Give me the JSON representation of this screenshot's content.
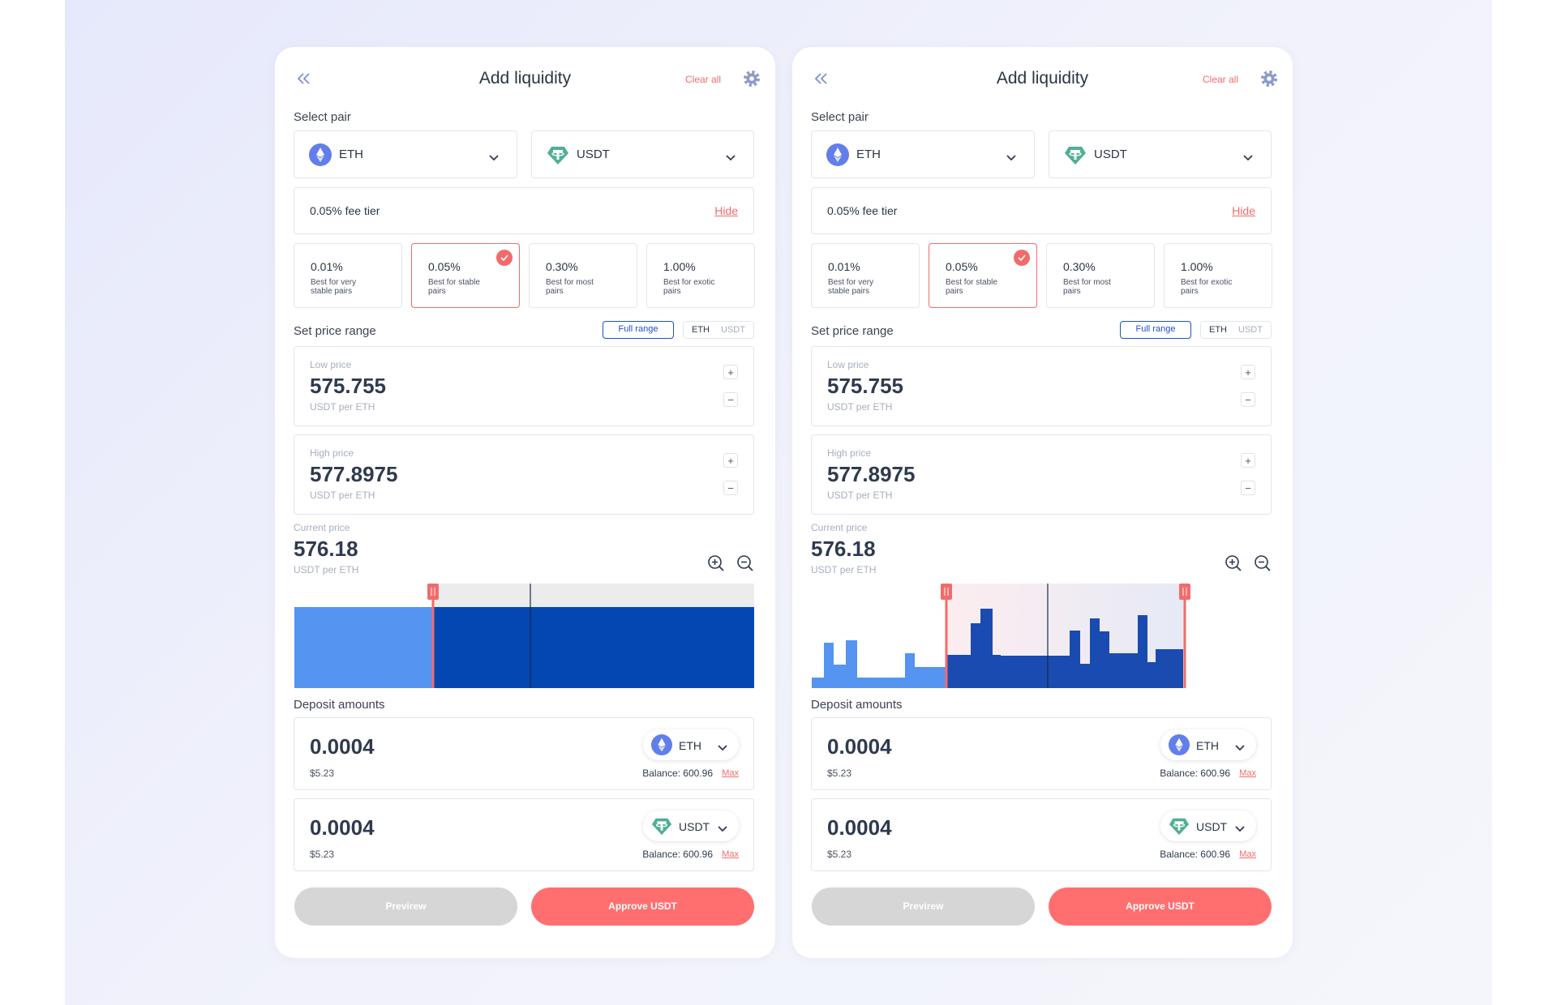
{
  "panels": [
    {
      "header": {
        "title": "Add liquidity",
        "clear": "Clear all"
      },
      "select_pair": {
        "label": "Select pair",
        "tokens": [
          "ETH",
          "USDT"
        ]
      },
      "fee": {
        "label": "0.05% fee tier",
        "toggle": "Hide",
        "selected": 1,
        "options": [
          {
            "rate": "0.01%",
            "desc": "Best for very stable pairs"
          },
          {
            "rate": "0.05%",
            "desc": "Best for stable pairs"
          },
          {
            "rate": "0.30%",
            "desc": "Best for most pairs"
          },
          {
            "rate": "1.00%",
            "desc": "Best for exotic pairs"
          }
        ]
      },
      "range": {
        "label": "Set price range",
        "full": "Full range",
        "units": [
          "ETH",
          "USDT"
        ],
        "low": {
          "label": "Low price",
          "value": "575.755",
          "unit": "USDT per ETH"
        },
        "high": {
          "label": "High price",
          "value": "577.8975",
          "unit": "USDT per ETH"
        },
        "current": {
          "label": "Current price",
          "value": "576.18",
          "unit": "USDT per ETH"
        }
      },
      "deposit": {
        "label": "Deposit amounts",
        "items": [
          {
            "amount": "0.0004",
            "usd": "$5.23",
            "token": "ETH",
            "balance": "Balance: 600.96",
            "max": "Max"
          },
          {
            "amount": "0.0004",
            "usd": "$5.23",
            "token": "USDT",
            "balance": "Balance: 600.96",
            "max": "Max"
          }
        ]
      },
      "buttons": {
        "preview": "Previrew",
        "approve": "Approve USDT"
      }
    },
    {
      "header": {
        "title": "Add liquidity",
        "clear": "Clear all"
      },
      "select_pair": {
        "label": "Select pair",
        "tokens": [
          "ETH",
          "USDT"
        ]
      },
      "fee": {
        "label": "0.05% fee tier",
        "toggle": "Hide",
        "selected": 1,
        "options": [
          {
            "rate": "0.01%",
            "desc": "Best for very stable pairs"
          },
          {
            "rate": "0.05%",
            "desc": "Best for stable pairs"
          },
          {
            "rate": "0.30%",
            "desc": "Best for most pairs"
          },
          {
            "rate": "1.00%",
            "desc": "Best for exotic pairs"
          }
        ]
      },
      "range": {
        "label": "Set price range",
        "full": "Full range",
        "units": [
          "ETH",
          "USDT"
        ],
        "low": {
          "label": "Low price",
          "value": "575.755",
          "unit": "USDT per ETH"
        },
        "high": {
          "label": "High price",
          "value": "577.8975",
          "unit": "USDT per ETH"
        },
        "current": {
          "label": "Current price",
          "value": "576.18",
          "unit": "USDT per ETH"
        }
      },
      "deposit": {
        "label": "Deposit amounts",
        "items": [
          {
            "amount": "0.0004",
            "usd": "$5.23",
            "token": "ETH",
            "balance": "Balance: 600.96",
            "max": "Max"
          },
          {
            "amount": "0.0004",
            "usd": "$5.23",
            "token": "USDT",
            "balance": "Balance: 600.96",
            "max": "Max"
          }
        ]
      },
      "buttons": {
        "preview": "Previrew",
        "approve": "Approve USDT"
      }
    }
  ]
}
